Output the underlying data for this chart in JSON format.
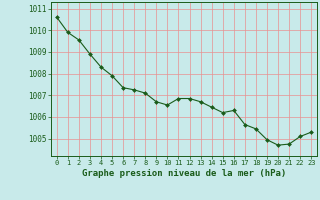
{
  "x": [
    0,
    1,
    2,
    3,
    4,
    5,
    6,
    7,
    8,
    9,
    10,
    11,
    12,
    13,
    14,
    15,
    16,
    17,
    18,
    19,
    20,
    21,
    22,
    23
  ],
  "y": [
    1010.6,
    1009.9,
    1009.55,
    1008.9,
    1008.3,
    1007.9,
    1007.35,
    1007.25,
    1007.1,
    1006.7,
    1006.55,
    1006.85,
    1006.85,
    1006.7,
    1006.45,
    1006.2,
    1006.3,
    1005.65,
    1005.45,
    1004.95,
    1004.7,
    1004.75,
    1005.1,
    1005.3
  ],
  "line_color": "#1a5c1a",
  "marker": "D",
  "marker_size": 2.0,
  "bg_color": "#c8eaea",
  "grid_color_v": "#e89090",
  "grid_color_h": "#e89090",
  "ylabel_ticks": [
    1005,
    1006,
    1007,
    1008,
    1009,
    1010,
    1011
  ],
  "xtick_labels": [
    "0",
    "1",
    "2",
    "3",
    "4",
    "5",
    "6",
    "7",
    "8",
    "9",
    "10",
    "11",
    "12",
    "13",
    "14",
    "15",
    "16",
    "17",
    "18",
    "19",
    "20",
    "21",
    "22",
    "23"
  ],
  "xlabel": "Graphe pression niveau de la mer (hPa)",
  "ylim": [
    1004.2,
    1011.3
  ],
  "xlim": [
    -0.5,
    23.5
  ],
  "xlabel_color": "#1a5c1a",
  "tick_color": "#1a5c1a",
  "spine_color": "#1a5c1a",
  "ytick_fontsize": 5.5,
  "xtick_fontsize": 5.0,
  "xlabel_fontsize": 6.5
}
